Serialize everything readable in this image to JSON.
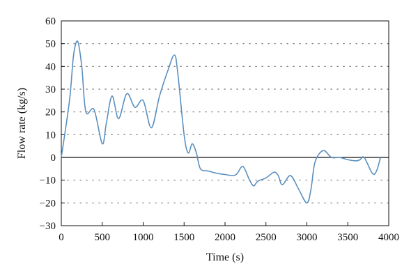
{
  "chart_data": {
    "type": "line",
    "xlabel": "Time (s)",
    "ylabel": "Flow rate (kg/s)",
    "xlim": [
      0,
      4000
    ],
    "ylim": [
      -30,
      60
    ],
    "xticks": [
      0,
      500,
      1000,
      1500,
      2000,
      2500,
      3000,
      3500,
      4000
    ],
    "yticks": [
      -30,
      -20,
      -10,
      0,
      10,
      20,
      30,
      40,
      50,
      60
    ],
    "grid": "horizontal dotted",
    "zero_line": true,
    "colors": {
      "line": "#5b8fbf",
      "grid": "#666666",
      "axis": "#111111"
    },
    "series": [
      {
        "x": [
          0,
          100,
          150,
          200,
          250,
          300,
          400,
          500,
          550,
          620,
          700,
          800,
          900,
          1000,
          1100,
          1200,
          1300,
          1380,
          1420,
          1500,
          1550,
          1600,
          1650,
          1700,
          1800,
          1900,
          2000,
          2100,
          2150,
          2220,
          2300,
          2350,
          2400,
          2500,
          2600,
          2650,
          2700,
          2800,
          2900,
          3000,
          3050,
          3100,
          3200,
          3300,
          3400,
          3500,
          3600,
          3650,
          3700,
          3800,
          3850,
          3900
        ],
        "y": [
          0,
          25,
          45,
          51,
          40,
          20,
          21,
          6,
          15,
          27,
          17,
          28,
          22,
          25,
          13,
          27,
          38,
          45,
          38,
          10,
          2,
          6,
          2,
          -5,
          -6,
          -7,
          -7.5,
          -8,
          -7,
          -4,
          -10,
          -12.5,
          -10.5,
          -9,
          -6.5,
          -8,
          -12,
          -8,
          -14,
          -20,
          -14,
          -2,
          3,
          0,
          0,
          -1,
          -1.5,
          -1,
          0,
          -7,
          -6,
          0
        ]
      }
    ]
  }
}
